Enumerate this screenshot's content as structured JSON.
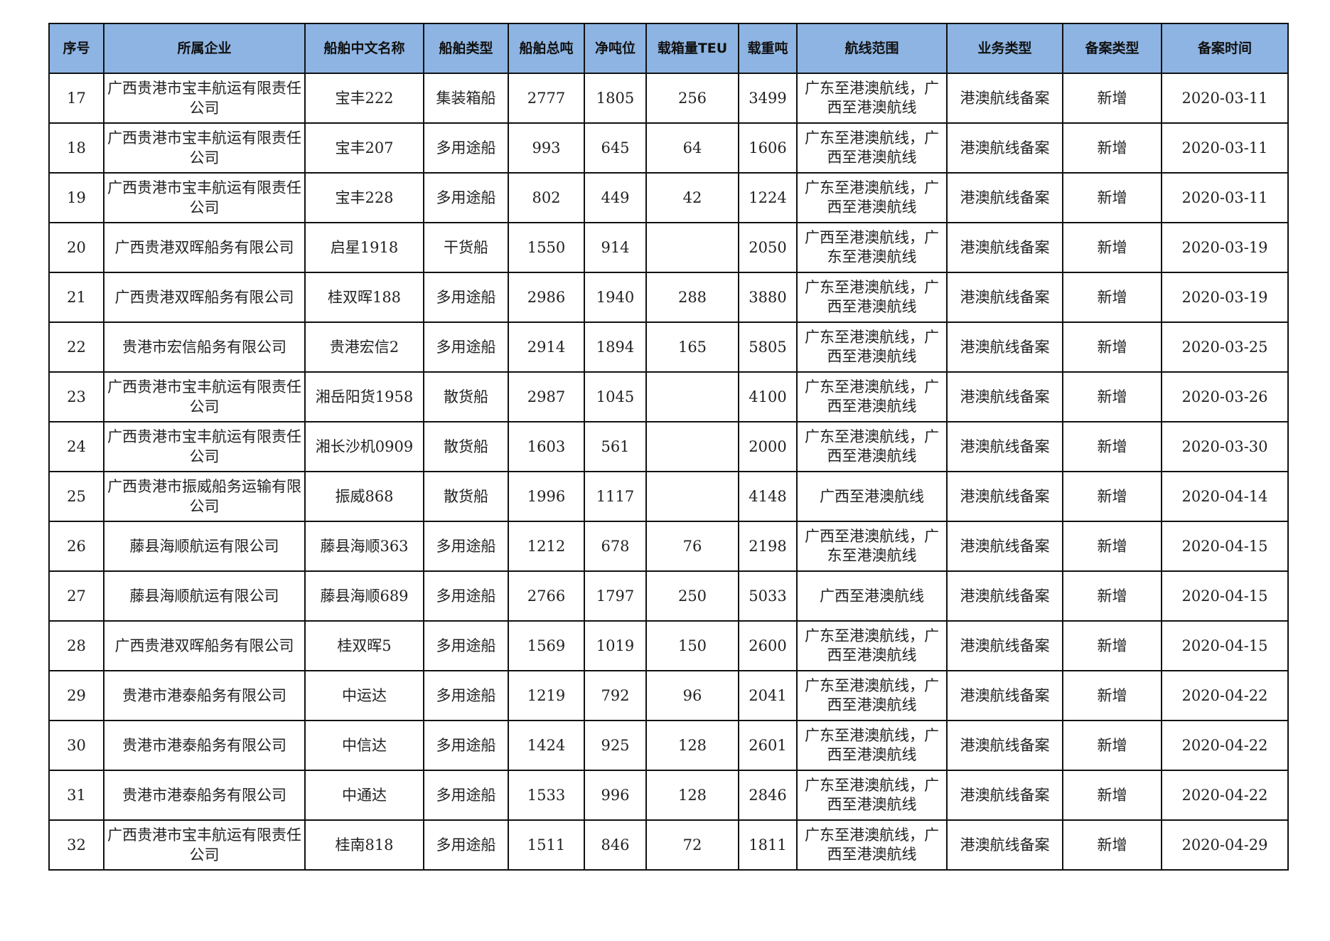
{
  "table": {
    "headers": [
      "序号",
      "所属企业",
      "船舶中文名称",
      "船舶类型",
      "船舶总吨",
      "净吨位",
      "载箱量TEU",
      "载重吨",
      "航线范围",
      "业务类型",
      "备案类型",
      "备案时间"
    ],
    "header_bg": "#8db4e2",
    "rows": [
      [
        "17",
        "广西贵港市宝丰航运有限责任公司",
        "宝丰222",
        "集装箱船",
        "2777",
        "1805",
        "256",
        "3499",
        "广东至港澳航线，广西至港澳航线",
        "港澳航线备案",
        "新增",
        "2020-03-11"
      ],
      [
        "18",
        "广西贵港市宝丰航运有限责任公司",
        "宝丰207",
        "多用途船",
        "993",
        "645",
        "64",
        "1606",
        "广东至港澳航线，广西至港澳航线",
        "港澳航线备案",
        "新增",
        "2020-03-11"
      ],
      [
        "19",
        "广西贵港市宝丰航运有限责任公司",
        "宝丰228",
        "多用途船",
        "802",
        "449",
        "42",
        "1224",
        "广东至港澳航线，广西至港澳航线",
        "港澳航线备案",
        "新增",
        "2020-03-11"
      ],
      [
        "20",
        "广西贵港双晖船务有限公司",
        "启星1918",
        "干货船",
        "1550",
        "914",
        "",
        "2050",
        "广西至港澳航线，广东至港澳航线",
        "港澳航线备案",
        "新增",
        "2020-03-19"
      ],
      [
        "21",
        "广西贵港双晖船务有限公司",
        "桂双晖188",
        "多用途船",
        "2986",
        "1940",
        "288",
        "3880",
        "广东至港澳航线，广西至港澳航线",
        "港澳航线备案",
        "新增",
        "2020-03-19"
      ],
      [
        "22",
        "贵港市宏信船务有限公司",
        "贵港宏信2",
        "多用途船",
        "2914",
        "1894",
        "165",
        "5805",
        "广东至港澳航线，广西至港澳航线",
        "港澳航线备案",
        "新增",
        "2020-03-25"
      ],
      [
        "23",
        "广西贵港市宝丰航运有限责任公司",
        "湘岳阳货1958",
        "散货船",
        "2987",
        "1045",
        "",
        "4100",
        "广东至港澳航线，广西至港澳航线",
        "港澳航线备案",
        "新增",
        "2020-03-26"
      ],
      [
        "24",
        "广西贵港市宝丰航运有限责任公司",
        "湘长沙机0909",
        "散货船",
        "1603",
        "561",
        "",
        "2000",
        "广东至港澳航线，广西至港澳航线",
        "港澳航线备案",
        "新增",
        "2020-03-30"
      ],
      [
        "25",
        "广西贵港市振威船务运输有限公司",
        "振威868",
        "散货船",
        "1996",
        "1117",
        "",
        "4148",
        "广西至港澳航线",
        "港澳航线备案",
        "新增",
        "2020-04-14"
      ],
      [
        "26",
        "藤县海顺航运有限公司",
        "藤县海顺363",
        "多用途船",
        "1212",
        "678",
        "76",
        "2198",
        "广西至港澳航线，广东至港澳航线",
        "港澳航线备案",
        "新增",
        "2020-04-15"
      ],
      [
        "27",
        "藤县海顺航运有限公司",
        "藤县海顺689",
        "多用途船",
        "2766",
        "1797",
        "250",
        "5033",
        "广西至港澳航线",
        "港澳航线备案",
        "新增",
        "2020-04-15"
      ],
      [
        "28",
        "广西贵港双晖船务有限公司",
        "桂双晖5",
        "多用途船",
        "1569",
        "1019",
        "150",
        "2600",
        "广东至港澳航线，广西至港澳航线",
        "港澳航线备案",
        "新增",
        "2020-04-15"
      ],
      [
        "29",
        "贵港市港泰船务有限公司",
        "中运达",
        "多用途船",
        "1219",
        "792",
        "96",
        "2041",
        "广东至港澳航线，广西至港澳航线",
        "港澳航线备案",
        "新增",
        "2020-04-22"
      ],
      [
        "30",
        "贵港市港泰船务有限公司",
        "中信达",
        "多用途船",
        "1424",
        "925",
        "128",
        "2601",
        "广东至港澳航线，广西至港澳航线",
        "港澳航线备案",
        "新增",
        "2020-04-22"
      ],
      [
        "31",
        "贵港市港泰船务有限公司",
        "中通达",
        "多用途船",
        "1533",
        "996",
        "128",
        "2846",
        "广东至港澳航线，广西至港澳航线",
        "港澳航线备案",
        "新增",
        "2020-04-22"
      ],
      [
        "32",
        "广西贵港市宝丰航运有限责任公司",
        "桂南818",
        "多用途船",
        "1511",
        "846",
        "72",
        "1811",
        "广东至港澳航线，广西至港澳航线",
        "港澳航线备案",
        "新增",
        "2020-04-29"
      ]
    ]
  }
}
